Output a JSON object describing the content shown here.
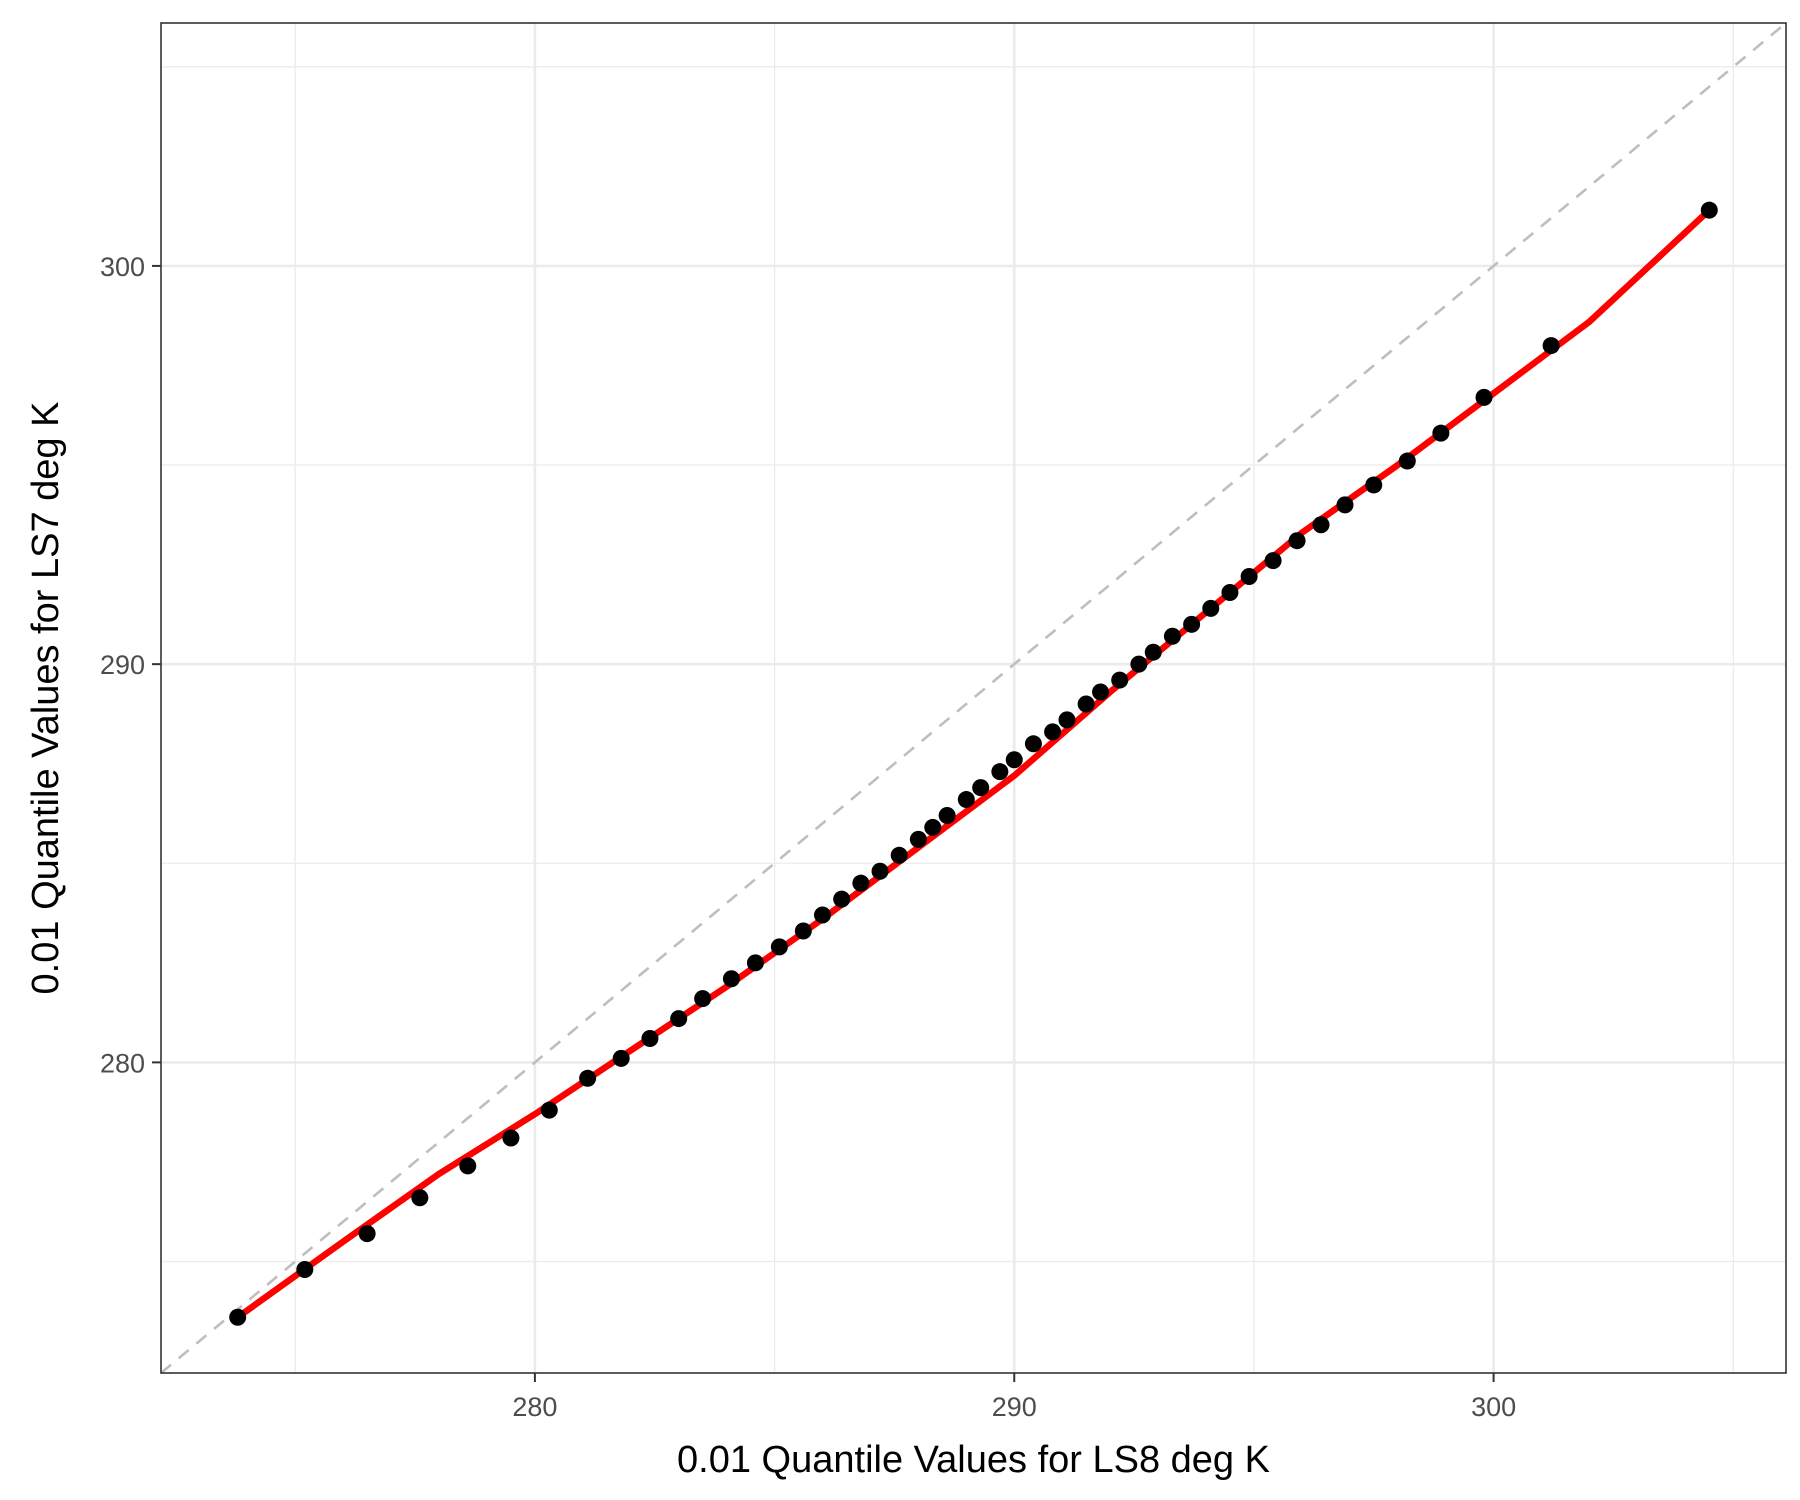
{
  "chart_data": {
    "type": "scatter",
    "title": "",
    "xlabel": "0.01 Quantile Values for LS8 deg K",
    "ylabel": "0.01 Quantile Values for LS7 deg K",
    "xlim": [
      272.2,
      306.1
    ],
    "ylim": [
      272.2,
      306.1
    ],
    "x_ticks": [
      280,
      290,
      300
    ],
    "y_ticks": [
      280,
      290,
      300
    ],
    "x_tick_labels": [
      "280",
      "290",
      "300"
    ],
    "y_tick_labels": [
      "280",
      "290",
      "300"
    ],
    "grid": true,
    "reference_line": {
      "type": "identity",
      "style": "dashed",
      "color": "#bebebe"
    },
    "series": [
      {
        "type": "scatter",
        "color": "#000000",
        "x": [
          273.8,
          275.2,
          276.5,
          277.6,
          278.6,
          279.5,
          280.3,
          281.1,
          281.8,
          282.4,
          283.0,
          283.5,
          284.1,
          284.6,
          285.1,
          285.6,
          286.0,
          286.4,
          286.8,
          287.2,
          287.6,
          288.0,
          288.3,
          288.6,
          289.0,
          289.3,
          289.7,
          290.0,
          290.4,
          290.8,
          291.1,
          291.5,
          291.8,
          292.2,
          292.6,
          292.9,
          293.3,
          293.7,
          294.1,
          294.5,
          294.9,
          295.4,
          295.9,
          296.4,
          296.9,
          297.5,
          298.2,
          298.9,
          299.8,
          301.2,
          304.5
        ],
        "y": [
          273.6,
          274.8,
          275.7,
          276.6,
          277.4,
          278.1,
          278.8,
          279.6,
          280.1,
          280.6,
          281.1,
          281.6,
          282.1,
          282.5,
          282.9,
          283.3,
          283.7,
          284.1,
          284.5,
          284.8,
          285.2,
          285.6,
          285.9,
          286.2,
          286.6,
          286.9,
          287.3,
          287.6,
          288.0,
          288.3,
          288.6,
          289.0,
          289.3,
          289.6,
          290.0,
          290.3,
          290.7,
          291.0,
          291.4,
          291.8,
          292.2,
          292.6,
          293.1,
          293.5,
          294.0,
          294.5,
          295.1,
          295.8,
          296.7,
          298.0,
          301.4
        ]
      },
      {
        "type": "line",
        "color": "#ff0000",
        "x": [
          273.8,
          276.0,
          278.0,
          280.0,
          282.0,
          284.0,
          286.0,
          288.0,
          290.0,
          292.0,
          294.0,
          296.0,
          298.0,
          300.0,
          302.0,
          304.5
        ],
        "y": [
          273.6,
          275.5,
          277.2,
          278.7,
          280.3,
          281.9,
          283.6,
          285.4,
          287.2,
          289.3,
          291.3,
          293.3,
          295.0,
          296.8,
          298.6,
          301.4
        ]
      }
    ]
  }
}
